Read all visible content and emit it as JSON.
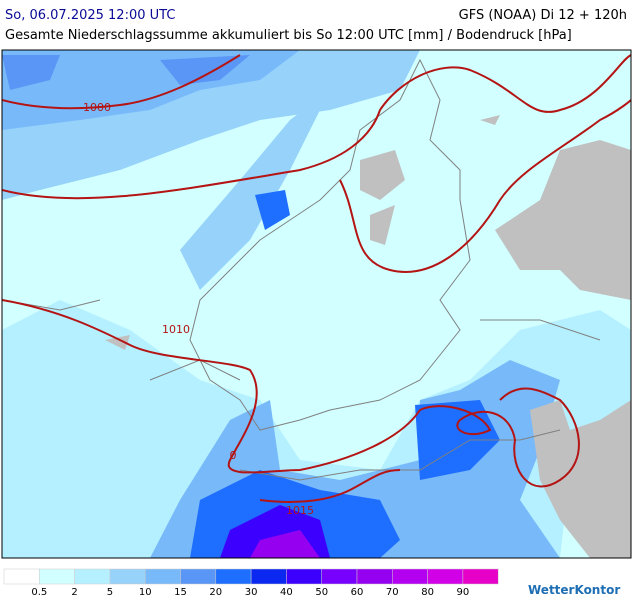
{
  "header": {
    "left": "So, 06.07.2025 12:00 UTC",
    "right": "GFS (NOAA) Di 12 + 120h",
    "subtitle": "Gesamte Niederschlagssumme akkumuliert bis So 12:00 UTC [mm] / Bodendruck [hPa]"
  },
  "map": {
    "isobar_labels": [
      "1000",
      "1010",
      "1015",
      "0"
    ]
  },
  "legend": {
    "colors": [
      "#ffffff",
      "#d2ffff",
      "#b4f0ff",
      "#96d2fa",
      "#78b9fa",
      "#5a96f5",
      "#1e6eff",
      "#0a28f0",
      "#3c00ff",
      "#7800ff",
      "#9600f0",
      "#b400f0",
      "#d200e6",
      "#e600c8"
    ],
    "labels": [
      "0.5",
      "2",
      "5",
      "10",
      "15",
      "20",
      "30",
      "40",
      "50",
      "60",
      "70",
      "80",
      "90"
    ]
  },
  "logo": "WetterKontor"
}
